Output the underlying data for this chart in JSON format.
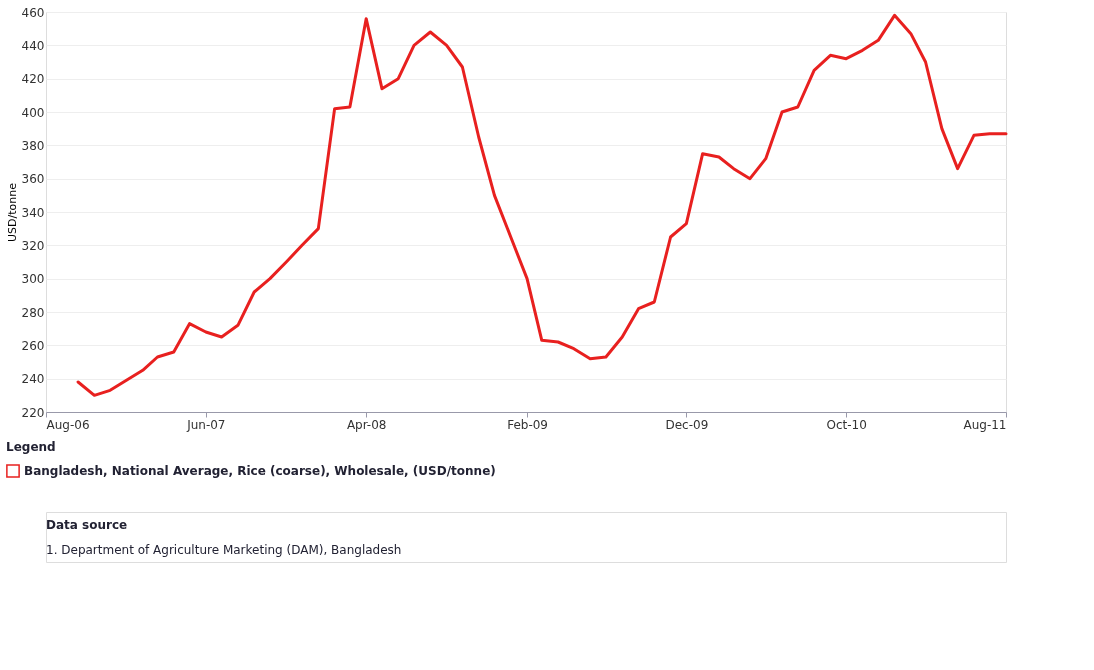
{
  "chart_data": {
    "type": "line",
    "ylabel": "USD/tonne",
    "legend_title": "Legend",
    "legend": "bottom",
    "grid": "y",
    "marker": "none",
    "line_style": "solid",
    "x": [
      "2006-10",
      "2006-11",
      "2006-12",
      "2007-01",
      "2007-02",
      "2007-03",
      "2007-04",
      "2007-05",
      "2007-06",
      "2007-07",
      "2007-08",
      "2007-09",
      "2007-10",
      "2007-11",
      "2007-12",
      "2008-01",
      "2008-02",
      "2008-03",
      "2008-04",
      "2008-05",
      "2008-06",
      "2008-07",
      "2008-08",
      "2008-09",
      "2008-10",
      "2008-11",
      "2008-12",
      "2009-01",
      "2009-02",
      "2009-03",
      "2009-04",
      "2009-05",
      "2009-06",
      "2009-07",
      "2009-08",
      "2009-09",
      "2009-10",
      "2009-11",
      "2009-12",
      "2010-01",
      "2010-02",
      "2010-03",
      "2010-04",
      "2010-05",
      "2010-06",
      "2010-07",
      "2010-08",
      "2010-09",
      "2010-10",
      "2010-11",
      "2010-12",
      "2011-01",
      "2011-02",
      "2011-03",
      "2011-04",
      "2011-05",
      "2011-06",
      "2011-07",
      "2011-08"
    ],
    "series": [
      {
        "name": "Bangladesh, National Average, Rice (coarse), Wholesale, (USD/tonne)",
        "color": "#e8201f",
        "values": [
          238,
          230,
          233,
          239,
          245,
          253,
          256,
          273,
          268,
          265,
          272,
          292,
          300,
          310,
          320,
          330,
          402,
          403,
          456,
          414,
          420,
          440,
          448,
          440,
          427,
          385,
          350,
          325,
          300,
          263,
          262,
          258,
          252,
          253,
          265,
          282,
          286,
          325,
          333,
          375,
          373,
          366,
          360,
          372,
          400,
          403,
          425,
          434,
          432,
          437,
          443,
          458,
          447,
          430,
          390,
          366,
          386,
          387,
          387
        ]
      }
    ],
    "xlim": [
      "2006-08",
      "2011-08"
    ],
    "xticks": [
      {
        "value": "2006-08",
        "label": "Aug-06"
      },
      {
        "value": "2007-06",
        "label": "Jun-07"
      },
      {
        "value": "2008-04",
        "label": "Apr-08"
      },
      {
        "value": "2009-02",
        "label": "Feb-09"
      },
      {
        "value": "2009-12",
        "label": "Dec-09"
      },
      {
        "value": "2010-10",
        "label": "Oct-10"
      },
      {
        "value": "2011-08",
        "label": "Aug-11"
      }
    ],
    "ylim": [
      220,
      460
    ],
    "yticks": [
      220,
      240,
      260,
      280,
      300,
      320,
      340,
      360,
      380,
      400,
      420,
      440,
      460
    ],
    "annotations": [
      "Data source",
      "1. Department of Agriculture Marketing (DAM), Bangladesh"
    ]
  }
}
